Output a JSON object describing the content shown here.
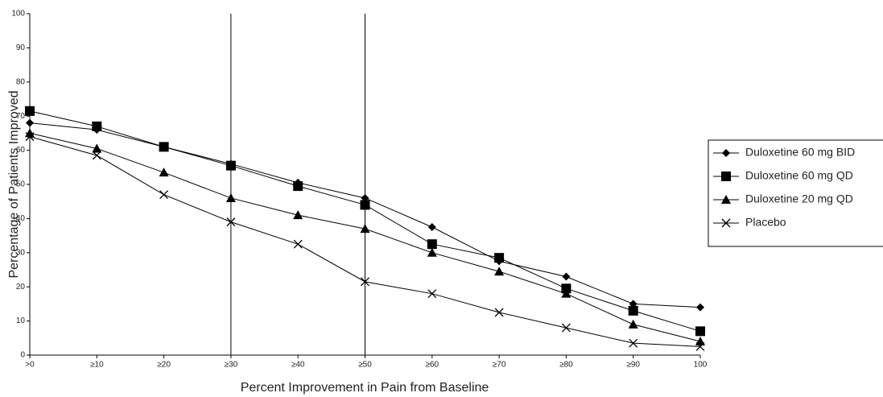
{
  "chart_data": {
    "type": "line",
    "x_label": "Percent Improvement in Pain from Baseline",
    "y_label": "Percentage of Patients Improved",
    "categories": [
      ">0",
      "≥10",
      "≥20",
      "≥30",
      "≥40",
      "≥50",
      "≥60",
      "≥70",
      "≥80",
      "≥90",
      "100"
    ],
    "reference_lines": [
      "≥30",
      "≥50"
    ],
    "ylim": [
      0,
      100
    ],
    "yticks": [
      0,
      10,
      20,
      30,
      40,
      50,
      60,
      70,
      80,
      90,
      100
    ],
    "grid": false,
    "legend": "right",
    "series": [
      {
        "name": "Duloxetine 60 mg BID",
        "color": "#000000",
        "marker": "diamond",
        "values": [
          68,
          66,
          61,
          56,
          50.5,
          46,
          37.5,
          27.5,
          23,
          15,
          14
        ]
      },
      {
        "name": "Duloxetine 60 mg QD",
        "color": "#000000",
        "marker": "square",
        "values": [
          71.5,
          67,
          61,
          55.5,
          49.5,
          44,
          32.5,
          28.5,
          19.5,
          13,
          7
        ]
      },
      {
        "name": "Duloxetine 20 mg QD",
        "color": "#000000",
        "marker": "triangle",
        "values": [
          65,
          60.5,
          53.5,
          46,
          41,
          37,
          30,
          24.5,
          18,
          9,
          4
        ]
      },
      {
        "name": "Placebo",
        "color": "#000000",
        "marker": "x",
        "values": [
          64,
          58.5,
          47,
          39,
          32.5,
          21.5,
          18,
          12.5,
          8,
          3.5,
          2.5
        ]
      }
    ]
  }
}
